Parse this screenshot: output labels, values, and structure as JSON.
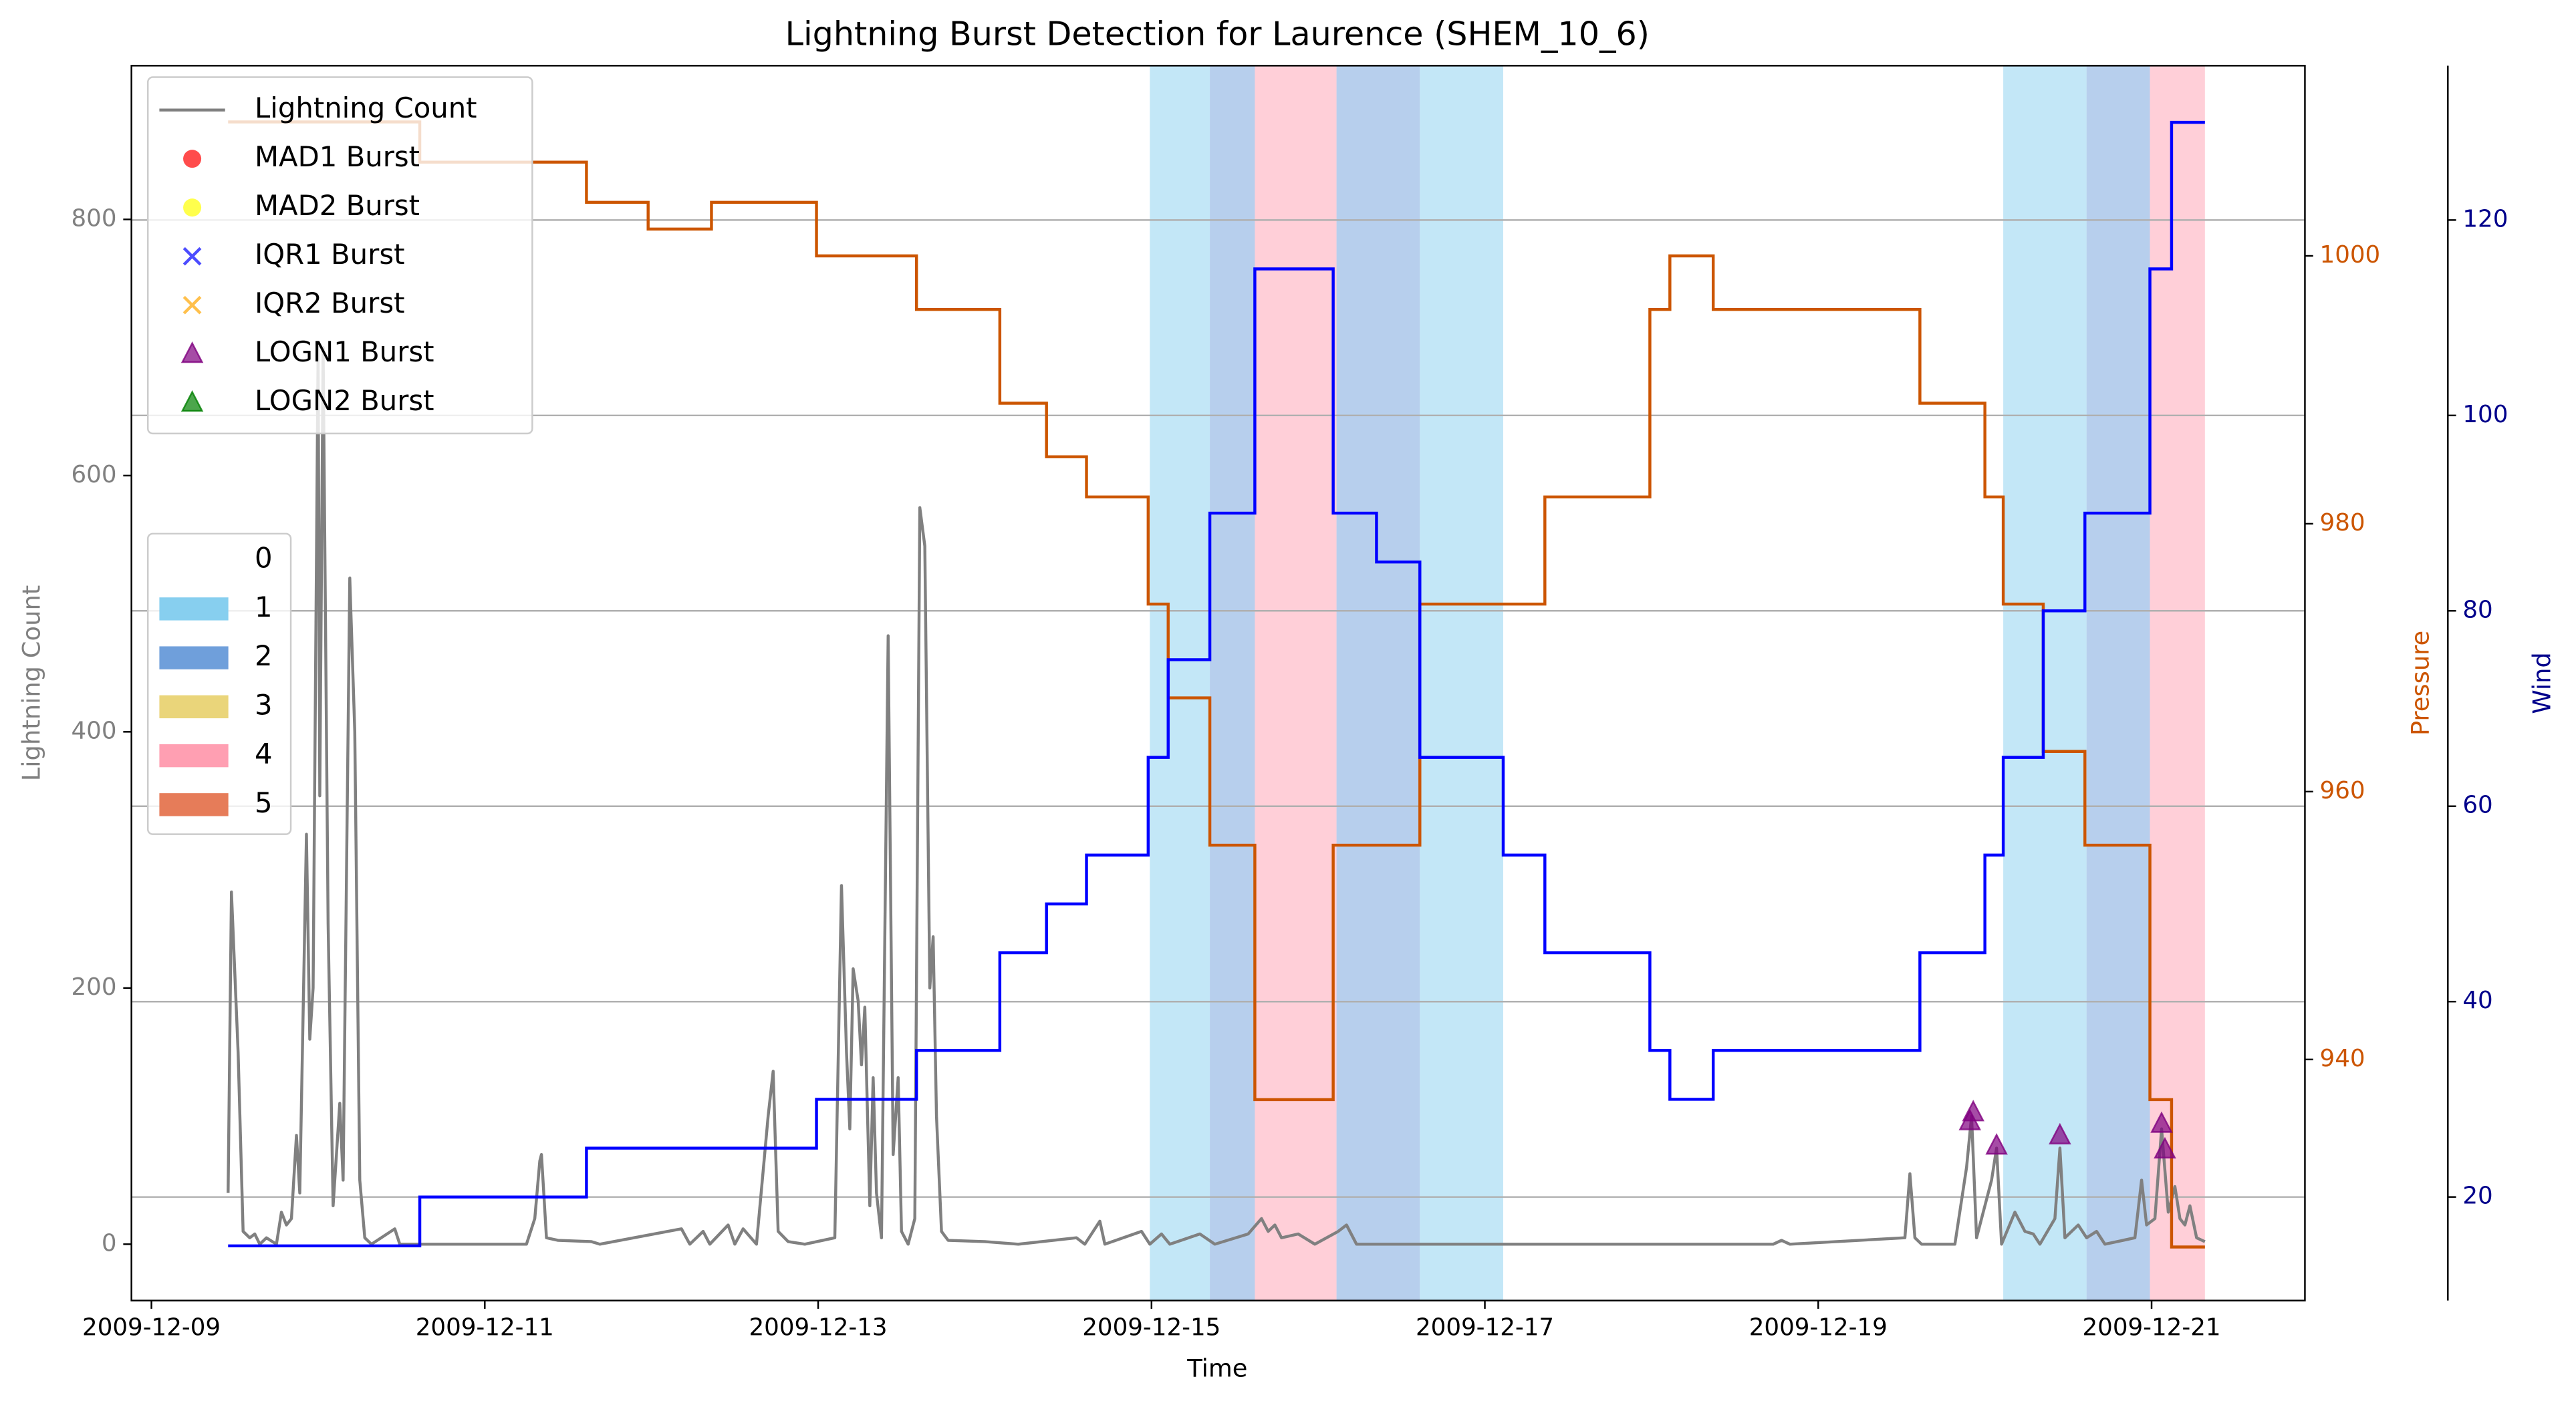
{
  "chart_data": {
    "type": "line",
    "title": "Lightning Burst Detection for Laurence (SHEM_10_6)",
    "xlabel": "Time",
    "ylabel": "Lightning Count",
    "y2label": "Pressure",
    "y3label": "Wind",
    "xlim": [
      -0.12,
      12.92
    ],
    "xticks": [
      {
        "value": 0,
        "label": "2009-12-09"
      },
      {
        "value": 2,
        "label": "2009-12-11"
      },
      {
        "value": 4,
        "label": "2009-12-13"
      },
      {
        "value": 6,
        "label": "2009-12-15"
      },
      {
        "value": 8,
        "label": "2009-12-17"
      },
      {
        "value": 10,
        "label": "2009-12-19"
      },
      {
        "value": 12,
        "label": "2009-12-21"
      }
    ],
    "ylim": [
      -44,
      920
    ],
    "yticks": [
      0,
      200,
      400,
      600,
      800
    ],
    "y2lim": [
      922,
      1014.2
    ],
    "y2ticks": [
      940,
      960,
      980,
      1000
    ],
    "y3lim": [
      9.4,
      135.8
    ],
    "y3ticks": [
      20,
      40,
      60,
      80,
      100,
      120
    ],
    "grid": true,
    "grid_axis": "y3",
    "ylabel_color": "#808080",
    "series": [
      {
        "name": "Lightning Count",
        "color": "#808080",
        "x": [
          0.46,
          0.48,
          0.52,
          0.55,
          0.59,
          0.62,
          0.65,
          0.69,
          0.75,
          0.78,
          0.81,
          0.84,
          0.87,
          0.89,
          0.93,
          0.95,
          0.97,
          1.0,
          1.01,
          1.03,
          1.06,
          1.09,
          1.13,
          1.15,
          1.19,
          1.22,
          1.25,
          1.28,
          1.32,
          1.46,
          1.49,
          2.25,
          2.3,
          2.33,
          2.34,
          2.37,
          2.44,
          2.64,
          2.69,
          3.18,
          3.23,
          3.31,
          3.35,
          3.46,
          3.5,
          3.55,
          3.63,
          3.7,
          3.73,
          3.76,
          3.82,
          3.92,
          4.1,
          4.14,
          4.17,
          4.19,
          4.21,
          4.24,
          4.26,
          4.28,
          4.31,
          4.33,
          4.35,
          4.38,
          4.42,
          4.45,
          4.48,
          4.5,
          4.54,
          4.58,
          4.61,
          4.64,
          4.67,
          4.69,
          4.71,
          4.74,
          4.78,
          5.0,
          5.2,
          5.55,
          5.6,
          5.69,
          5.72,
          5.94,
          5.99,
          6.06,
          6.11,
          6.29,
          6.38,
          6.58,
          6.66,
          6.7,
          6.74,
          6.78,
          6.88,
          6.98,
          7.12,
          7.17,
          7.23,
          9.73,
          9.78,
          9.83,
          10.52,
          10.55,
          10.58,
          10.62,
          10.82,
          10.89,
          10.92,
          10.95,
          11.04,
          11.07,
          11.1,
          11.18,
          11.24,
          11.29,
          11.33,
          11.42,
          11.45,
          11.48,
          11.56,
          11.61,
          11.67,
          11.72,
          11.9,
          11.94,
          11.97,
          12.02,
          12.06,
          12.1,
          12.14,
          12.17,
          12.2,
          12.23,
          12.27,
          12.32
        ],
        "values": [
          40,
          275,
          150,
          10,
          5,
          8,
          0,
          5,
          0,
          25,
          15,
          20,
          85,
          40,
          320,
          160,
          200,
          700,
          350,
          700,
          250,
          30,
          110,
          50,
          520,
          400,
          50,
          5,
          0,
          12,
          0,
          0,
          20,
          65,
          70,
          5,
          3,
          2,
          0,
          12,
          0,
          10,
          0,
          15,
          0,
          12,
          0,
          100,
          135,
          10,
          2,
          0,
          5,
          280,
          150,
          90,
          215,
          190,
          140,
          185,
          30,
          130,
          40,
          5,
          475,
          70,
          130,
          10,
          0,
          20,
          575,
          545,
          200,
          240,
          100,
          10,
          3,
          2,
          0,
          5,
          0,
          18,
          0,
          10,
          0,
          8,
          0,
          8,
          0,
          8,
          20,
          10,
          15,
          5,
          8,
          0,
          10,
          15,
          0,
          0,
          3,
          0,
          5,
          55,
          5,
          0,
          0,
          60,
          100,
          5,
          50,
          75,
          0,
          25,
          10,
          8,
          0,
          20,
          75,
          5,
          15,
          5,
          10,
          0,
          5,
          50,
          15,
          20,
          90,
          25,
          45,
          20,
          15,
          30,
          5,
          2
        ]
      },
      {
        "name": "MAD1 Burst",
        "color": "#ff0000",
        "marker": "o",
        "x": [],
        "values": []
      },
      {
        "name": "MAD2 Burst",
        "color": "#ffff00",
        "marker": "o",
        "x": [],
        "values": []
      },
      {
        "name": "IQR1 Burst",
        "color": "#0000ff",
        "marker": "x",
        "x": [],
        "values": []
      },
      {
        "name": "IQR2 Burst",
        "color": "#ffa500",
        "marker": "x",
        "x": [],
        "values": []
      },
      {
        "name": "LOGN1 Burst",
        "color": "#800080",
        "marker": "^",
        "x": [
          10.91,
          10.93,
          11.07,
          11.45,
          12.06,
          12.08
        ],
        "values": [
          96,
          103,
          77,
          85,
          94,
          74
        ]
      },
      {
        "name": "LOGN2 Burst",
        "color": "#008000",
        "marker": "^",
        "x": [],
        "values": []
      }
    ],
    "pressure": {
      "axis": "y2",
      "color": "#cc5500",
      "step": "post",
      "x": [
        0.46,
        1.61,
        2.61,
        2.98,
        3.36,
        3.99,
        4.59,
        5.09,
        5.37,
        5.61,
        5.98,
        6.1,
        6.35,
        6.62,
        7.09,
        7.61,
        8.36,
        8.99,
        9.11,
        9.37,
        10.61,
        11.0,
        11.11,
        11.35,
        11.6,
        11.99,
        12.12,
        12.32
      ],
      "values": [
        1010,
        1007,
        1004,
        1002,
        1004,
        1000,
        996,
        989,
        985,
        982,
        974,
        967,
        956,
        937,
        956,
        974,
        982,
        996,
        1000,
        996,
        989,
        982,
        974,
        963,
        956,
        937,
        926,
        926
      ]
    },
    "wind": {
      "axis": "y3",
      "color": "#0000ff",
      "label_color": "#00008b",
      "step": "post",
      "x": [
        0.46,
        1.61,
        2.61,
        3.99,
        4.59,
        5.09,
        5.37,
        5.61,
        5.98,
        6.1,
        6.35,
        6.62,
        7.09,
        7.35,
        7.61,
        8.11,
        8.36,
        8.99,
        9.11,
        9.37,
        10.61,
        11.0,
        11.11,
        11.35,
        11.6,
        11.99,
        12.12,
        12.32
      ],
      "values": [
        15,
        20,
        25,
        30,
        35,
        45,
        50,
        55,
        65,
        75,
        90,
        115,
        90,
        85,
        65,
        55,
        45,
        35,
        30,
        35,
        45,
        55,
        65,
        80,
        90,
        115,
        130,
        130
      ]
    },
    "categories": [
      "0",
      "1",
      "2",
      "3",
      "4",
      "5"
    ],
    "category_colors": [
      "#ffffff",
      "#87cfef",
      "#6f9fdb",
      "#ead57a",
      "#ff9fb2",
      "#e67c59"
    ],
    "spans": [
      {
        "start": 5.99,
        "end": 6.35,
        "category": 1
      },
      {
        "start": 6.35,
        "end": 6.62,
        "category": 2
      },
      {
        "start": 6.62,
        "end": 7.11,
        "category": 4
      },
      {
        "start": 7.11,
        "end": 7.61,
        "category": 2
      },
      {
        "start": 7.61,
        "end": 8.11,
        "category": 1
      },
      {
        "start": 11.11,
        "end": 11.61,
        "category": 1
      },
      {
        "start": 11.61,
        "end": 11.99,
        "category": 2
      },
      {
        "start": 11.99,
        "end": 12.32,
        "category": 4
      }
    ]
  }
}
